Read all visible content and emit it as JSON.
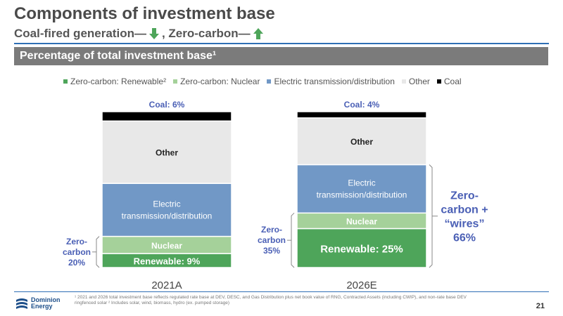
{
  "header": {
    "title": "Components of investment base",
    "subtitle_coal": "Coal-fired generation—",
    "subtitle_sep": ", Zero-carbon—",
    "banner": "Percentage of total investment base¹"
  },
  "colors": {
    "renewable": "#4ea55a",
    "nuclear": "#a5d19a",
    "transmission": "#7198c6",
    "other": "#e8e8e8",
    "coal": "#000000",
    "annotation": "#4a5fb5",
    "banner": "#7b7b7b",
    "arrow_down": "#4ea55a",
    "arrow_up": "#4ea55a"
  },
  "chart_data": {
    "type": "bar",
    "stacked": true,
    "unit": "%",
    "categories": [
      "2021A",
      "2026E"
    ],
    "series": [
      {
        "name": "Zero-carbon: Renewable²",
        "color": "#4ea55a",
        "values": [
          9,
          25
        ]
      },
      {
        "name": "Zero-carbon: Nuclear",
        "color": "#a5d19a",
        "values": [
          11,
          10
        ]
      },
      {
        "name": "Electric transmission/distribution",
        "color": "#7198c6",
        "values": [
          34,
          31
        ]
      },
      {
        "name": "Other",
        "color": "#e8e8e8",
        "values": [
          40,
          30
        ]
      },
      {
        "name": "Coal",
        "color": "#000000",
        "values": [
          6,
          4
        ]
      }
    ],
    "segment_labels": [
      [
        "Renewable: 9%",
        "Nuclear",
        "Electric transmission/distribution",
        "Other",
        ""
      ],
      [
        "Renewable: 25%",
        "Nuclear",
        "Electric transmission/distribution",
        "Other",
        ""
      ]
    ],
    "top_labels": [
      "Coal: 6%",
      "Coal: 4%"
    ],
    "bracket_labels": [
      {
        "text": "Zero-carbon 20%",
        "lines": [
          "Zero-",
          "carbon",
          "20%"
        ]
      },
      {
        "text": "Zero-carbon 35%",
        "lines": [
          "Zero-",
          "carbon",
          "35%"
        ]
      }
    ],
    "right_bracket": {
      "lines": [
        "Zero-",
        "carbon +",
        "“wires”",
        "66%"
      ]
    },
    "legend_position": "top",
    "ylim": [
      0,
      100
    ],
    "grid": false
  },
  "footer": {
    "logo_line1": "Dominion",
    "logo_line2": "Energy",
    "footnote": "¹ 2021 and 2026 total investment base reflects regulated rate base at DEV, DESC, and Gas Distribution plus net book value of RNG, Contracted Assets (including CWIP), and non-rate base DEV ringfenced solar ² Includes solar, wind, biomass, hydro (ex. pumped storage)",
    "page_number": "21"
  }
}
